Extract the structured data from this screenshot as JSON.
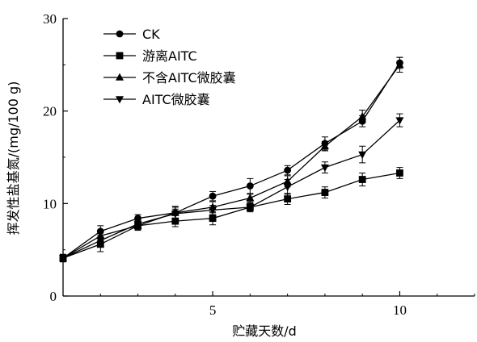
{
  "chart_data": {
    "type": "line",
    "xlabel": "贮藏天数/d",
    "ylabel": "挥发性盐基氮/(mg/100 g)",
    "xlim": [
      1,
      12
    ],
    "ylim": [
      0,
      30
    ],
    "x_ticks": [
      "5",
      "10"
    ],
    "y_ticks": [
      "0",
      "10",
      "20",
      "30"
    ],
    "legend_position": "top-left",
    "x": [
      1,
      2,
      3,
      4,
      5,
      6,
      7,
      8,
      9,
      10
    ],
    "series": [
      {
        "name": "CK",
        "marker": "circle",
        "values": [
          4.1,
          7.0,
          8.4,
          9.0,
          10.8,
          11.9,
          13.6,
          16.5,
          18.9,
          25.2
        ],
        "errors": [
          0.4,
          0.6,
          0.4,
          0.6,
          0.5,
          0.8,
          0.5,
          0.7,
          0.6,
          0.6
        ]
      },
      {
        "name": "游离AITC",
        "marker": "square",
        "values": [
          4.1,
          5.6,
          7.6,
          8.1,
          8.4,
          9.6,
          10.5,
          11.2,
          12.6,
          13.3
        ],
        "errors": [
          0.4,
          0.8,
          0.5,
          0.6,
          0.7,
          0.4,
          0.6,
          0.6,
          0.7,
          0.6
        ]
      },
      {
        "name": "不含AITC微胶囊",
        "marker": "triangle-up",
        "values": [
          4.1,
          6.5,
          7.6,
          9.0,
          9.6,
          10.6,
          12.4,
          16.2,
          19.4,
          25.0
        ],
        "errors": [
          0.4,
          0.5,
          0.4,
          0.7,
          0.6,
          0.4,
          0.6,
          0.5,
          0.7,
          0.8
        ]
      },
      {
        "name": "AITC微胶囊",
        "marker": "triangle-down",
        "values": [
          4.1,
          6.0,
          7.8,
          8.9,
          9.3,
          9.6,
          11.8,
          13.9,
          15.3,
          19.0
        ],
        "errors": [
          0.4,
          0.6,
          0.5,
          0.5,
          0.5,
          0.5,
          0.8,
          0.6,
          0.9,
          0.7
        ]
      }
    ]
  }
}
